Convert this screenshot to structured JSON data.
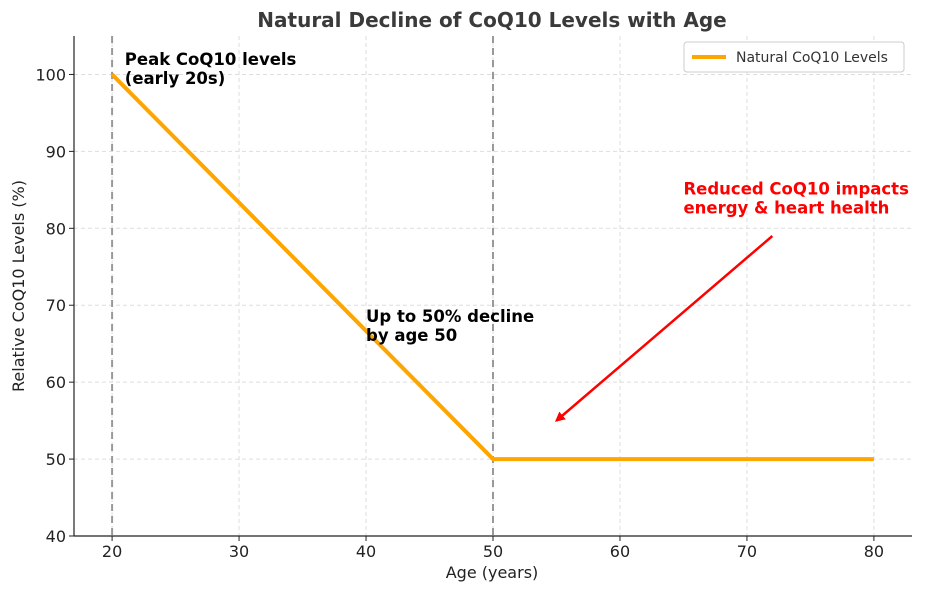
{
  "chart_data": {
    "type": "line",
    "title": "Natural Decline of CoQ10 Levels with Age",
    "xlabel": "Age (years)",
    "ylabel": "Relative CoQ10 Levels (%)",
    "xlim": [
      17,
      83
    ],
    "ylim": [
      40,
      105
    ],
    "xticks": [
      20,
      30,
      40,
      50,
      60,
      70,
      80
    ],
    "yticks": [
      40,
      50,
      60,
      70,
      80,
      90,
      100
    ],
    "grid": true,
    "legend_position": "top-right",
    "series": [
      {
        "name": "Natural CoQ10 Levels",
        "color": "#FFA500",
        "x": [
          20,
          50,
          80
        ],
        "y": [
          100,
          50,
          50
        ]
      }
    ],
    "vlines": [
      20,
      50
    ],
    "annotations": [
      {
        "lines": [
          "Peak CoQ10 levels",
          "(early 20s)"
        ],
        "x": 21,
        "y": 101.2,
        "color": "#000000"
      },
      {
        "lines": [
          "Up to 50% decline",
          "by age 50"
        ],
        "x": 40,
        "y": 67.8,
        "color": "#000000"
      },
      {
        "lines": [
          "Reduced CoQ10 impacts",
          "energy & heart health"
        ],
        "x": 65,
        "y": 84.4,
        "color": "#FF0000",
        "arrow_from": [
          72,
          79
        ],
        "arrow_to": [
          55,
          55
        ]
      }
    ]
  }
}
